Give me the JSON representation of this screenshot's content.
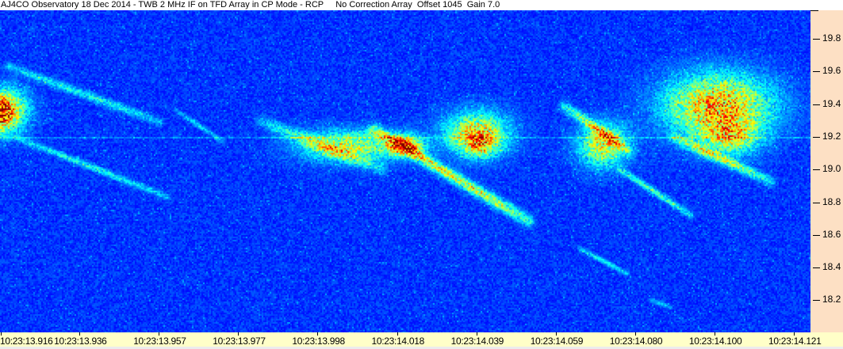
{
  "title": "AJ4CO Observatory 18 Dec 2014 - TWB 2 MHz IF on TFD Array in CP Mode - RCP     No Correction Array  Offset 1045  Gain 7.0",
  "chart_data": {
    "type": "heatmap",
    "title": "AJ4CO Observatory 18 Dec 2014 - TWB 2 MHz IF on TFD Array in CP Mode - RCP     No Correction Array  Offset 1045  Gain 7.0",
    "xlabel": "",
    "ylabel": "",
    "x_tick_labels": [
      "10:23:13.916",
      "10:23:13.936",
      "10:23:13.957",
      "10:23:13.977",
      "10:23:13.998",
      "10:23:14.018",
      "10:23:14.039",
      "10:23:14.059",
      "10:23:14.080",
      "10:23:14.100",
      "10:23:14.121"
    ],
    "y_tick_labels": [
      "19.8",
      "19.6",
      "19.4",
      "19.2",
      "19.0",
      "18.8",
      "18.6",
      "18.4",
      "18.2"
    ],
    "y_ticks": [
      19.8,
      19.6,
      19.4,
      19.2,
      19.0,
      18.8,
      18.6,
      18.4,
      18.2
    ],
    "yaxis_side": "right",
    "colormap": "jet",
    "colors": {
      "background": "#0a2ea8",
      "plot_noise": "#1a5ae0",
      "title_bg": "#ffffff",
      "yaxis_bg": "#fde0c4",
      "xaxis_bg": "#ffffc8"
    }
  }
}
